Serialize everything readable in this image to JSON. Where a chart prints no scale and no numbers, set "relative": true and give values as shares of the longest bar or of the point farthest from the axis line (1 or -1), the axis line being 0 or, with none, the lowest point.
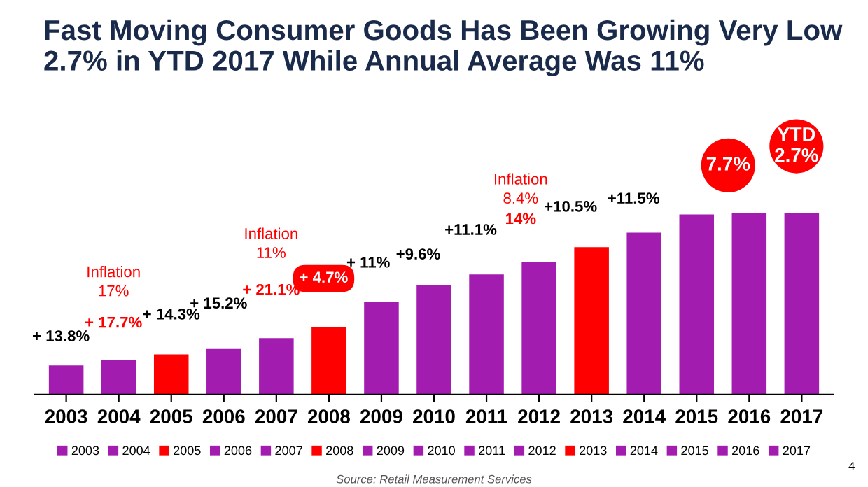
{
  "chart_data": {
    "type": "bar",
    "title": "Fast Moving Consumer Goods Has Been Growing Very Low 2.7% in YTD 2017 While Annual Average Was 11%",
    "relative": true,
    "categories": [
      "2003",
      "2004",
      "2005",
      "2006",
      "2007",
      "2008",
      "2009",
      "2010",
      "2011",
      "2012",
      "2013",
      "2014",
      "2015",
      "2016",
      "2017"
    ],
    "series": [
      {
        "name": "2003",
        "color": "#a21caf",
        "values": [
          0.16,
          null,
          null,
          null,
          null,
          null,
          null,
          null,
          null,
          null,
          null,
          null,
          null,
          null,
          null
        ]
      },
      {
        "name": "2004",
        "color": "#a21caf",
        "values": [
          null,
          0.19,
          null,
          null,
          null,
          null,
          null,
          null,
          null,
          null,
          null,
          null,
          null,
          null,
          null
        ]
      },
      {
        "name": "2005",
        "color": "#ff0000",
        "values": [
          null,
          null,
          0.22,
          null,
          null,
          null,
          null,
          null,
          null,
          null,
          null,
          null,
          null,
          null,
          null
        ]
      },
      {
        "name": "2006",
        "color": "#a21caf",
        "values": [
          null,
          null,
          null,
          0.25,
          null,
          null,
          null,
          null,
          null,
          null,
          null,
          null,
          null,
          null,
          null
        ]
      },
      {
        "name": "2007",
        "color": "#a21caf",
        "values": [
          null,
          null,
          null,
          null,
          0.31,
          null,
          null,
          null,
          null,
          null,
          null,
          null,
          null,
          null,
          null
        ]
      },
      {
        "name": "2008",
        "color": "#ff0000",
        "values": [
          null,
          null,
          null,
          null,
          null,
          0.37,
          null,
          null,
          null,
          null,
          null,
          null,
          null,
          null,
          null
        ]
      },
      {
        "name": "2009",
        "color": "#a21caf",
        "values": [
          null,
          null,
          null,
          null,
          null,
          null,
          0.51,
          null,
          null,
          null,
          null,
          null,
          null,
          null,
          null
        ]
      },
      {
        "name": "2010",
        "color": "#a21caf",
        "values": [
          null,
          null,
          null,
          null,
          null,
          null,
          null,
          0.6,
          null,
          null,
          null,
          null,
          null,
          null,
          null
        ]
      },
      {
        "name": "2011",
        "color": "#a21caf",
        "values": [
          null,
          null,
          null,
          null,
          null,
          null,
          null,
          null,
          0.66,
          null,
          null,
          null,
          null,
          null,
          null
        ]
      },
      {
        "name": "2012",
        "color": "#a21caf",
        "values": [
          null,
          null,
          null,
          null,
          null,
          null,
          null,
          null,
          null,
          0.73,
          null,
          null,
          null,
          null,
          null
        ]
      },
      {
        "name": "2013",
        "color": "#ff0000",
        "values": [
          null,
          null,
          null,
          null,
          null,
          null,
          null,
          null,
          null,
          null,
          0.81,
          null,
          null,
          null,
          null
        ]
      },
      {
        "name": "2014",
        "color": "#a21caf",
        "values": [
          null,
          null,
          null,
          null,
          null,
          null,
          null,
          null,
          null,
          null,
          null,
          0.89,
          null,
          null,
          null
        ]
      },
      {
        "name": "2015",
        "color": "#a21caf",
        "values": [
          null,
          null,
          null,
          null,
          null,
          null,
          null,
          null,
          null,
          null,
          null,
          null,
          0.99,
          null,
          null
        ]
      },
      {
        "name": "2016",
        "color": "#a21caf",
        "values": [
          null,
          null,
          null,
          null,
          null,
          null,
          null,
          null,
          null,
          null,
          null,
          null,
          null,
          1,
          null
        ]
      },
      {
        "name": "2017",
        "color": "#a21caf",
        "values": [
          null,
          null,
          null,
          null,
          null,
          null,
          null,
          null,
          null,
          null,
          null,
          null,
          null,
          null,
          1
        ]
      }
    ],
    "legend": "bottom",
    "annotations": [
      "+ 13.8%",
      "+ 17.7%",
      "Inflation\n17%",
      "+ 14.3%",
      "+ 15.2%",
      "+ 21.1%",
      "Inflation\n11%",
      "+ 4.7%",
      "+ 11%",
      "+9.6%",
      "+11.1%",
      "14%",
      "Inflation\n8.4%",
      "+10.5%",
      "+11.5%",
      "7.7%",
      "YTD\n2.7%",
      "Source: Retail Measurement Services",
      "4"
    ]
  }
}
